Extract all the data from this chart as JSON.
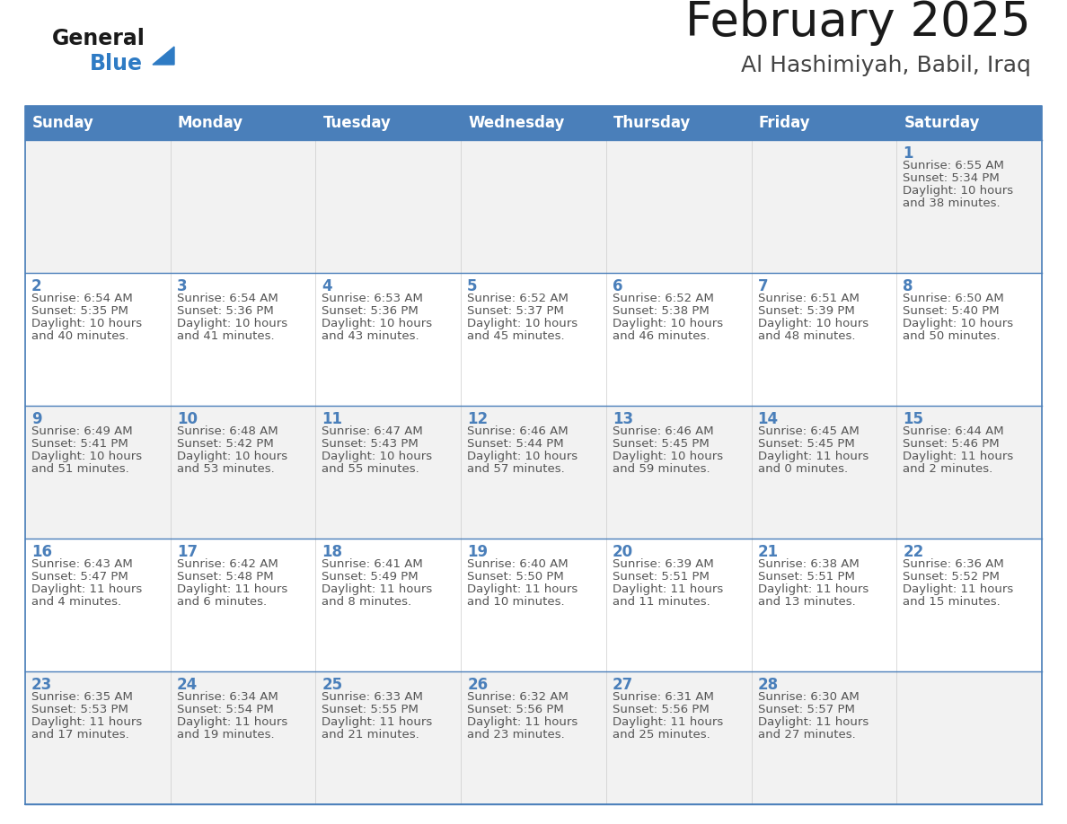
{
  "title": "February 2025",
  "subtitle": "Al Hashimiyah, Babil, Iraq",
  "days_of_week": [
    "Sunday",
    "Monday",
    "Tuesday",
    "Wednesday",
    "Thursday",
    "Friday",
    "Saturday"
  ],
  "header_bg": "#4a7fba",
  "header_text": "#FFFFFF",
  "cell_bg_light": "#F2F2F2",
  "cell_bg_white": "#FFFFFF",
  "cell_border": "#4a7fba",
  "row_border": "#4a7fba",
  "day_number_color": "#4a7fba",
  "info_text_color": "#555555",
  "title_color": "#1a1a1a",
  "subtitle_color": "#444444",
  "logo_general_color": "#1a1a1a",
  "logo_blue_color": "#2e7bc4",
  "calendar_data": [
    [
      null,
      null,
      null,
      null,
      null,
      null,
      {
        "day": 1,
        "sunrise": "6:55 AM",
        "sunset": "5:34 PM",
        "daylight_line1": "Daylight: 10 hours",
        "daylight_line2": "and 38 minutes."
      }
    ],
    [
      {
        "day": 2,
        "sunrise": "6:54 AM",
        "sunset": "5:35 PM",
        "daylight_line1": "Daylight: 10 hours",
        "daylight_line2": "and 40 minutes."
      },
      {
        "day": 3,
        "sunrise": "6:54 AM",
        "sunset": "5:36 PM",
        "daylight_line1": "Daylight: 10 hours",
        "daylight_line2": "and 41 minutes."
      },
      {
        "day": 4,
        "sunrise": "6:53 AM",
        "sunset": "5:36 PM",
        "daylight_line1": "Daylight: 10 hours",
        "daylight_line2": "and 43 minutes."
      },
      {
        "day": 5,
        "sunrise": "6:52 AM",
        "sunset": "5:37 PM",
        "daylight_line1": "Daylight: 10 hours",
        "daylight_line2": "and 45 minutes."
      },
      {
        "day": 6,
        "sunrise": "6:52 AM",
        "sunset": "5:38 PM",
        "daylight_line1": "Daylight: 10 hours",
        "daylight_line2": "and 46 minutes."
      },
      {
        "day": 7,
        "sunrise": "6:51 AM",
        "sunset": "5:39 PM",
        "daylight_line1": "Daylight: 10 hours",
        "daylight_line2": "and 48 minutes."
      },
      {
        "day": 8,
        "sunrise": "6:50 AM",
        "sunset": "5:40 PM",
        "daylight_line1": "Daylight: 10 hours",
        "daylight_line2": "and 50 minutes."
      }
    ],
    [
      {
        "day": 9,
        "sunrise": "6:49 AM",
        "sunset": "5:41 PM",
        "daylight_line1": "Daylight: 10 hours",
        "daylight_line2": "and 51 minutes."
      },
      {
        "day": 10,
        "sunrise": "6:48 AM",
        "sunset": "5:42 PM",
        "daylight_line1": "Daylight: 10 hours",
        "daylight_line2": "and 53 minutes."
      },
      {
        "day": 11,
        "sunrise": "6:47 AM",
        "sunset": "5:43 PM",
        "daylight_line1": "Daylight: 10 hours",
        "daylight_line2": "and 55 minutes."
      },
      {
        "day": 12,
        "sunrise": "6:46 AM",
        "sunset": "5:44 PM",
        "daylight_line1": "Daylight: 10 hours",
        "daylight_line2": "and 57 minutes."
      },
      {
        "day": 13,
        "sunrise": "6:46 AM",
        "sunset": "5:45 PM",
        "daylight_line1": "Daylight: 10 hours",
        "daylight_line2": "and 59 minutes."
      },
      {
        "day": 14,
        "sunrise": "6:45 AM",
        "sunset": "5:45 PM",
        "daylight_line1": "Daylight: 11 hours",
        "daylight_line2": "and 0 minutes."
      },
      {
        "day": 15,
        "sunrise": "6:44 AM",
        "sunset": "5:46 PM",
        "daylight_line1": "Daylight: 11 hours",
        "daylight_line2": "and 2 minutes."
      }
    ],
    [
      {
        "day": 16,
        "sunrise": "6:43 AM",
        "sunset": "5:47 PM",
        "daylight_line1": "Daylight: 11 hours",
        "daylight_line2": "and 4 minutes."
      },
      {
        "day": 17,
        "sunrise": "6:42 AM",
        "sunset": "5:48 PM",
        "daylight_line1": "Daylight: 11 hours",
        "daylight_line2": "and 6 minutes."
      },
      {
        "day": 18,
        "sunrise": "6:41 AM",
        "sunset": "5:49 PM",
        "daylight_line1": "Daylight: 11 hours",
        "daylight_line2": "and 8 minutes."
      },
      {
        "day": 19,
        "sunrise": "6:40 AM",
        "sunset": "5:50 PM",
        "daylight_line1": "Daylight: 11 hours",
        "daylight_line2": "and 10 minutes."
      },
      {
        "day": 20,
        "sunrise": "6:39 AM",
        "sunset": "5:51 PM",
        "daylight_line1": "Daylight: 11 hours",
        "daylight_line2": "and 11 minutes."
      },
      {
        "day": 21,
        "sunrise": "6:38 AM",
        "sunset": "5:51 PM",
        "daylight_line1": "Daylight: 11 hours",
        "daylight_line2": "and 13 minutes."
      },
      {
        "day": 22,
        "sunrise": "6:36 AM",
        "sunset": "5:52 PM",
        "daylight_line1": "Daylight: 11 hours",
        "daylight_line2": "and 15 minutes."
      }
    ],
    [
      {
        "day": 23,
        "sunrise": "6:35 AM",
        "sunset": "5:53 PM",
        "daylight_line1": "Daylight: 11 hours",
        "daylight_line2": "and 17 minutes."
      },
      {
        "day": 24,
        "sunrise": "6:34 AM",
        "sunset": "5:54 PM",
        "daylight_line1": "Daylight: 11 hours",
        "daylight_line2": "and 19 minutes."
      },
      {
        "day": 25,
        "sunrise": "6:33 AM",
        "sunset": "5:55 PM",
        "daylight_line1": "Daylight: 11 hours",
        "daylight_line2": "and 21 minutes."
      },
      {
        "day": 26,
        "sunrise": "6:32 AM",
        "sunset": "5:56 PM",
        "daylight_line1": "Daylight: 11 hours",
        "daylight_line2": "and 23 minutes."
      },
      {
        "day": 27,
        "sunrise": "6:31 AM",
        "sunset": "5:56 PM",
        "daylight_line1": "Daylight: 11 hours",
        "daylight_line2": "and 25 minutes."
      },
      {
        "day": 28,
        "sunrise": "6:30 AM",
        "sunset": "5:57 PM",
        "daylight_line1": "Daylight: 11 hours",
        "daylight_line2": "and 27 minutes."
      },
      null
    ]
  ]
}
